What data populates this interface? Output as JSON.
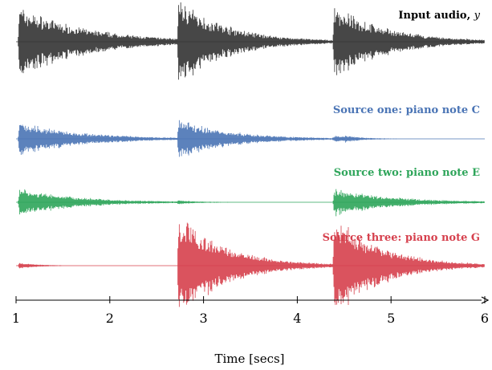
{
  "chart_data": {
    "type": "line",
    "x_unit": "secs",
    "xlabel": "Time [secs]",
    "xlim": [
      1,
      6
    ],
    "xticks": [
      1,
      2,
      3,
      4,
      5,
      6
    ],
    "xtick_labels": [
      "1",
      "2",
      "3",
      "4",
      "5",
      "6"
    ],
    "grid": false,
    "legend": "none",
    "series": [
      {
        "name": "Input audio, y",
        "label_main": "Input audio, ",
        "label_var": "y",
        "color": "#333333",
        "onsets": [
          {
            "t": 1.02,
            "amp": 1.0,
            "decay": 1.3
          },
          {
            "t": 2.72,
            "amp": 1.15,
            "decay": 0.9
          },
          {
            "t": 4.38,
            "amp": 1.0,
            "decay": 1.0
          }
        ]
      },
      {
        "name": "Source one: piano note C",
        "color": "#4a74b5",
        "onsets": [
          {
            "t": 1.02,
            "amp": 0.55,
            "decay": 1.2
          },
          {
            "t": 2.72,
            "amp": 0.6,
            "decay": 1.0
          },
          {
            "t": 4.38,
            "amp": 0.08,
            "decay": 0.3
          },
          {
            "t": 4.5,
            "amp": 0.08,
            "decay": 0.2
          }
        ]
      },
      {
        "name": "Source two: piano note E",
        "color": "#2ea55a",
        "onsets": [
          {
            "t": 1.02,
            "amp": 0.55,
            "decay": 1.1
          },
          {
            "t": 2.72,
            "amp": 0.07,
            "decay": 0.2
          },
          {
            "t": 4.38,
            "amp": 0.55,
            "decay": 1.1
          }
        ]
      },
      {
        "name": "Source three: piano note G",
        "color": "#d6404d",
        "onsets": [
          {
            "t": 1.02,
            "amp": 0.06,
            "decay": 0.4
          },
          {
            "t": 2.72,
            "amp": 1.05,
            "decay": 0.9
          },
          {
            "t": 4.38,
            "amp": 1.0,
            "decay": 0.9
          }
        ]
      }
    ]
  }
}
